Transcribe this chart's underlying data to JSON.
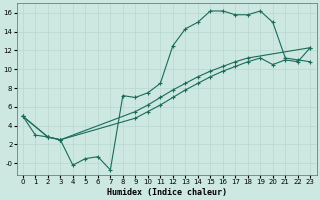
{
  "xlabel": "Humidex (Indice chaleur)",
  "bg_color": "#cce8e0",
  "grid_color": "#b8d8d0",
  "line_color": "#1a6b5a",
  "xlim": [
    -0.5,
    23.5
  ],
  "ylim": [
    -1.2,
    17
  ],
  "xticks": [
    0,
    1,
    2,
    3,
    4,
    5,
    6,
    7,
    8,
    9,
    10,
    11,
    12,
    13,
    14,
    15,
    16,
    17,
    18,
    19,
    20,
    21,
    22,
    23
  ],
  "yticks": [
    0,
    2,
    4,
    6,
    8,
    10,
    12,
    14,
    16
  ],
  "ytick_labels": [
    "-0",
    "2",
    "4",
    "6",
    "8",
    "10",
    "12",
    "14",
    "16"
  ],
  "curve1_x": [
    0,
    1,
    2,
    3,
    4,
    5,
    6,
    7,
    8,
    9,
    10,
    11,
    12,
    13,
    14,
    15,
    16,
    17,
    18,
    19,
    20,
    21,
    22,
    23
  ],
  "curve1_y": [
    5.0,
    3.0,
    2.8,
    2.5,
    -0.2,
    0.5,
    0.7,
    -0.7,
    7.2,
    7.0,
    7.5,
    8.5,
    12.5,
    14.3,
    15.0,
    16.2,
    16.2,
    15.8,
    15.8,
    16.2,
    15.0,
    11.2,
    11.0,
    10.8
  ],
  "curve2_x": [
    0,
    2,
    3,
    9,
    10,
    11,
    12,
    13,
    14,
    15,
    16,
    17,
    18,
    23
  ],
  "curve2_y": [
    5.0,
    2.8,
    2.5,
    5.5,
    6.2,
    7.0,
    7.8,
    8.5,
    9.2,
    9.8,
    10.3,
    10.8,
    11.2,
    12.3
  ],
  "curve3_x": [
    0,
    2,
    3,
    9,
    10,
    11,
    12,
    13,
    14,
    15,
    16,
    17,
    18,
    19,
    20,
    21,
    22,
    23
  ],
  "curve3_y": [
    5.0,
    2.8,
    2.5,
    4.8,
    5.5,
    6.2,
    7.0,
    7.8,
    8.5,
    9.2,
    9.8,
    10.3,
    10.8,
    11.2,
    10.5,
    11.0,
    10.8,
    12.3
  ]
}
